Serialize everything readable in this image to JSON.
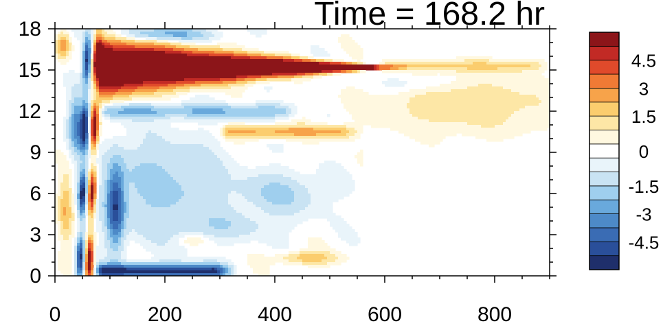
{
  "chart_data": {
    "type": "heatmap",
    "title": "Time = 168.2 hr",
    "xlabel": "",
    "ylabel": "",
    "xlim": [
      0,
      900
    ],
    "ylim": [
      0,
      18
    ],
    "x_ticks": [
      {
        "value": 0,
        "label": "0"
      },
      {
        "value": 200,
        "label": "200"
      },
      {
        "value": 400,
        "label": "400"
      },
      {
        "value": 600,
        "label": "600"
      },
      {
        "value": 800,
        "label": "800"
      }
    ],
    "y_ticks": [
      {
        "value": 0,
        "label": "0"
      },
      {
        "value": 3,
        "label": "3"
      },
      {
        "value": 6,
        "label": "6"
      },
      {
        "value": 9,
        "label": "9"
      },
      {
        "value": 12,
        "label": "12"
      },
      {
        "value": 15,
        "label": "15"
      },
      {
        "value": 18,
        "label": "18"
      }
    ],
    "colorbar": {
      "levels": [
        -5.25,
        -4.5,
        -3.75,
        -3,
        -2.25,
        -1.5,
        -0.75,
        -0.25,
        0.25,
        0.75,
        1.5,
        2.25,
        3,
        3.75,
        4.5,
        5.25
      ],
      "colors": [
        "#1f2f6b",
        "#2a4f9a",
        "#3a6cb4",
        "#4d8ac8",
        "#69a9dc",
        "#9fcfee",
        "#c9e3f3",
        "#e9f4fa",
        "#ffffff",
        "#fff8e0",
        "#fde7a6",
        "#fbcd6e",
        "#f7a34a",
        "#f07a35",
        "#e04a2b",
        "#c22a25",
        "#8c1519"
      ],
      "tick_labels": [
        {
          "value": 4.5,
          "label": "4.5"
        },
        {
          "value": 3,
          "label": "3"
        },
        {
          "value": 1.5,
          "label": "1.5"
        },
        {
          "value": 0,
          "label": "0"
        },
        {
          "value": -1.5,
          "label": "-1.5"
        },
        {
          "value": -3,
          "label": "-3"
        },
        {
          "value": -4.5,
          "label": "-4.5"
        }
      ]
    },
    "field_features": [
      {
        "kind": "jet",
        "x_start": 80,
        "x_end": 580,
        "y_center": 15.2,
        "half_width_start": 2.2,
        "half_width_end": 0.15,
        "value": 7.0
      },
      {
        "kind": "band",
        "x_start": 300,
        "x_end": 560,
        "y_center": 10.5,
        "half_width": 0.45,
        "value": 2.5
      },
      {
        "kind": "band",
        "x_start": 590,
        "x_end": 900,
        "y_center": 15.3,
        "half_width": 0.4,
        "value": 1.6
      },
      {
        "kind": "blob",
        "x": 750,
        "y": 12.5,
        "sx": 160,
        "sy": 2.0,
        "value": 1.3
      },
      {
        "kind": "blob",
        "x": 650,
        "y": 14.0,
        "sx": 70,
        "sy": 0.7,
        "value": -0.8
      },
      {
        "kind": "blob",
        "x": 460,
        "y": 1.3,
        "sx": 50,
        "sy": 0.45,
        "value": 2.2
      },
      {
        "kind": "blob",
        "x": 250,
        "y": 2.6,
        "sx": 30,
        "sy": 0.4,
        "value": 1.0
      },
      {
        "kind": "band",
        "x_start": 70,
        "x_end": 330,
        "y_center": 0.35,
        "half_width": 0.5,
        "value": -5.5
      },
      {
        "kind": "band",
        "x_start": 80,
        "x_end": 450,
        "y_center": 12.0,
        "half_width": 0.5,
        "value": -2.2
      },
      {
        "kind": "blob",
        "x": 200,
        "y": 17.6,
        "sx": 90,
        "sy": 0.5,
        "value": -2.5
      },
      {
        "kind": "blob",
        "x": 190,
        "y": 6.5,
        "sx": 110,
        "sy": 3.5,
        "value": -1.8
      },
      {
        "kind": "blob",
        "x": 410,
        "y": 6.0,
        "sx": 80,
        "sy": 1.5,
        "value": -1.6
      },
      {
        "kind": "blob",
        "x": 310,
        "y": 3.6,
        "sx": 100,
        "sy": 1.0,
        "value": -1.0
      },
      {
        "kind": "blob",
        "x": 110,
        "y": 5.0,
        "sx": 16,
        "sy": 3.0,
        "value": -4.5
      },
      {
        "kind": "front",
        "x_bottom": 62,
        "x_top": 78,
        "value": 6.5
      },
      {
        "kind": "front",
        "x_bottom": 45,
        "x_top": 60,
        "value": -5.5
      },
      {
        "kind": "blob",
        "x": 15,
        "y": 16.8,
        "sx": 12,
        "sy": 0.9,
        "value": 3.0
      },
      {
        "kind": "blob",
        "x": 40,
        "y": 11.0,
        "sx": 14,
        "sy": 2.0,
        "value": -3.5
      },
      {
        "kind": "blob",
        "x": 20,
        "y": 5.0,
        "sx": 12,
        "sy": 2.5,
        "value": 2.2
      }
    ]
  }
}
